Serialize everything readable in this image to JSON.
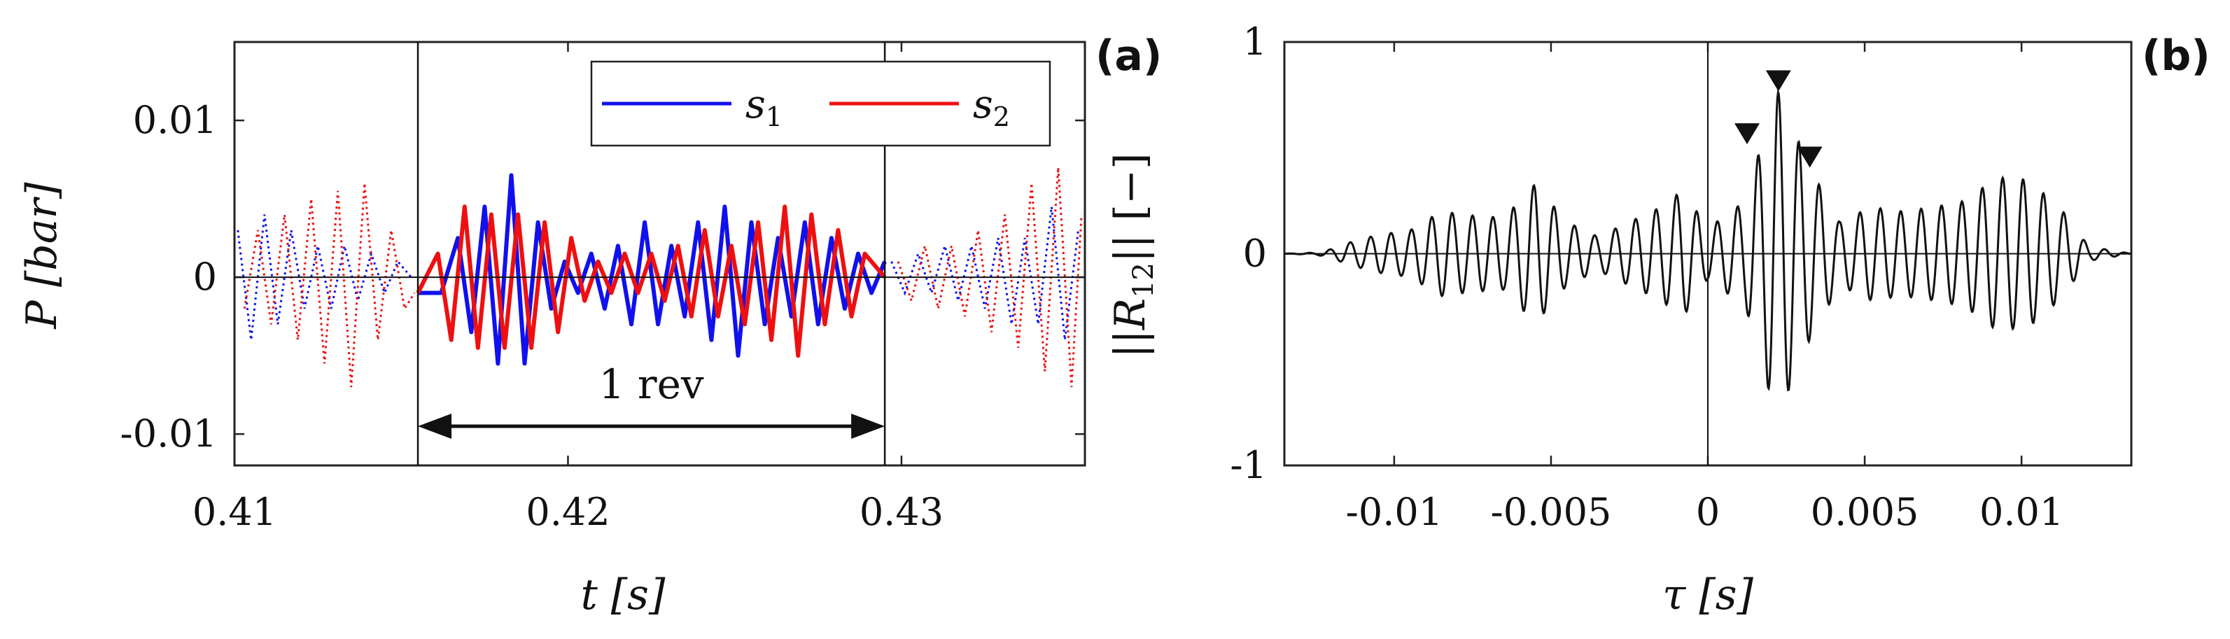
{
  "chart_data": [
    {
      "panel": "(a)",
      "type": "line",
      "xlabel": "t [s]",
      "ylabel": "P [bar]",
      "xlim": [
        0.41,
        0.4355
      ],
      "ylim": [
        -0.012,
        0.015
      ],
      "xticks": [
        0.41,
        0.42,
        0.43
      ],
      "xtick_labels": [
        "0.41",
        "0.42",
        "0.43"
      ],
      "yticks": [
        0.01,
        0,
        -0.01
      ],
      "ytick_labels": [
        "0.01",
        "0",
        "-0.01"
      ],
      "legend": {
        "position": "top-right",
        "entries": [
          "s1",
          "s2"
        ],
        "entry_main": [
          "s",
          "s"
        ],
        "entry_sub": [
          "1",
          "2"
        ]
      },
      "series_colors": [
        "#1010ee",
        "#ee1010"
      ],
      "revolution_window": [
        0.4155,
        0.4295
      ],
      "annotation": "1 rev",
      "series": [
        {
          "name": "s1",
          "color": "#1010ee",
          "x": [
            0.4155,
            0.4162,
            0.4167,
            0.4171,
            0.4175,
            0.4179,
            0.4183,
            0.4187,
            0.4191,
            0.4195,
            0.4199,
            0.4203,
            0.4207,
            0.4211,
            0.4215,
            0.4219,
            0.4223,
            0.4227,
            0.4231,
            0.4235,
            0.4239,
            0.4243,
            0.4247,
            0.4251,
            0.4255,
            0.4259,
            0.4263,
            0.4267,
            0.4271,
            0.4275,
            0.4279,
            0.4283,
            0.4287,
            0.4291,
            0.4295
          ],
          "y": [
            -0.001,
            -0.001,
            0.0025,
            -0.0035,
            0.0045,
            -0.0055,
            0.0065,
            -0.0055,
            0.0035,
            -0.002,
            0.001,
            -0.001,
            0.0015,
            -0.002,
            0.002,
            -0.003,
            0.0035,
            -0.003,
            0.002,
            -0.0025,
            0.0035,
            -0.004,
            0.0045,
            -0.005,
            0.0035,
            -0.003,
            0.0025,
            -0.0025,
            0.0035,
            -0.003,
            0.0025,
            -0.002,
            0.0015,
            -0.001,
            0.001
          ]
        },
        {
          "name": "s2",
          "color": "#ee1010",
          "x": [
            0.4155,
            0.4161,
            0.4165,
            0.4169,
            0.4173,
            0.4177,
            0.4181,
            0.4185,
            0.4189,
            0.4193,
            0.4197,
            0.4201,
            0.4205,
            0.4209,
            0.4213,
            0.4217,
            0.4221,
            0.4225,
            0.4229,
            0.4233,
            0.4237,
            0.4241,
            0.4245,
            0.4249,
            0.4253,
            0.4257,
            0.4261,
            0.4265,
            0.4269,
            0.4273,
            0.4277,
            0.4281,
            0.4285,
            0.4289,
            0.4295
          ],
          "y": [
            -0.001,
            0.0015,
            -0.004,
            0.0045,
            -0.0045,
            0.004,
            -0.0045,
            0.004,
            -0.0045,
            0.0035,
            -0.0035,
            0.0025,
            -0.0015,
            0.001,
            -0.001,
            0.0015,
            -0.001,
            0.0015,
            -0.0015,
            0.002,
            -0.0025,
            0.003,
            -0.0025,
            0.002,
            -0.003,
            0.0035,
            -0.004,
            0.0045,
            -0.005,
            0.004,
            -0.003,
            0.003,
            -0.0025,
            0.0015,
            0.0
          ]
        }
      ],
      "dotted_outside": [
        {
          "name": "s1",
          "color": "#1010ee",
          "x_left": [
            0.4101,
            0.4105,
            0.4109,
            0.4113,
            0.4117,
            0.4121,
            0.4125,
            0.4129,
            0.4133,
            0.4137,
            0.4141,
            0.4145,
            0.4149,
            0.4153
          ],
          "y_left": [
            0.003,
            -0.004,
            0.004,
            -0.003,
            0.003,
            -0.002,
            0.002,
            -0.002,
            0.002,
            -0.0015,
            0.0015,
            -0.001,
            0.001,
            0.0
          ],
          "x_right": [
            0.4297,
            0.4301,
            0.4305,
            0.4309,
            0.4313,
            0.4317,
            0.4321,
            0.4325,
            0.4329,
            0.4333,
            0.4337,
            0.4341,
            0.4345,
            0.4349,
            0.4353
          ],
          "y_right": [
            0.001,
            -0.001,
            0.0015,
            -0.001,
            0.002,
            -0.0015,
            0.002,
            -0.002,
            0.0025,
            -0.003,
            0.0025,
            -0.003,
            0.0045,
            -0.004,
            0.003
          ]
        },
        {
          "name": "s2",
          "color": "#ee1010",
          "x_left": [
            0.4103,
            0.4107,
            0.4111,
            0.4115,
            0.4119,
            0.4123,
            0.4127,
            0.4131,
            0.4135,
            0.4139,
            0.4143,
            0.4147,
            0.4151,
            0.4154
          ],
          "y_left": [
            -0.002,
            0.003,
            -0.003,
            0.004,
            -0.004,
            0.005,
            -0.0055,
            0.0055,
            -0.007,
            0.006,
            -0.004,
            0.003,
            -0.002,
            -0.001
          ],
          "x_right": [
            0.4299,
            0.4303,
            0.4307,
            0.4311,
            0.4315,
            0.4319,
            0.4323,
            0.4327,
            0.4331,
            0.4335,
            0.4339,
            0.4343,
            0.4347,
            0.4351,
            0.4354
          ],
          "y_right": [
            0.001,
            -0.0015,
            0.002,
            -0.002,
            0.002,
            -0.0025,
            0.003,
            -0.0035,
            0.004,
            -0.0045,
            0.006,
            -0.006,
            0.007,
            -0.007,
            0.004
          ]
        }
      ]
    },
    {
      "panel": "(b)",
      "type": "line",
      "xlabel": "τ [s]",
      "ylabel": "||R12|| [−]",
      "ylabel_parts": {
        "open": "||",
        "main": "R",
        "sub": "12",
        "close": "|| [−]"
      },
      "xlim": [
        -0.0135,
        0.0135
      ],
      "ylim": [
        -1,
        1
      ],
      "xticks": [
        -0.01,
        -0.005,
        0,
        0.005,
        0.01
      ],
      "xtick_labels": [
        "-0.01",
        "-0.005",
        "0",
        "0.005",
        "0.01"
      ],
      "yticks": [
        1,
        0,
        -1
      ],
      "ytick_labels": [
        "1",
        "0",
        "-1"
      ],
      "series_colors": [
        "#111111"
      ],
      "series": [
        {
          "name": "",
          "envelope_peaks": [
            [
              -0.0125,
              0.01
            ],
            [
              -0.0115,
              0.05
            ],
            [
              -0.0105,
              0.09
            ],
            [
              -0.0095,
              0.11
            ],
            [
              -0.0085,
              0.2
            ],
            [
              -0.0075,
              0.18
            ],
            [
              -0.0065,
              0.17
            ],
            [
              -0.0055,
              0.33
            ],
            [
              -0.0045,
              0.15
            ],
            [
              -0.0035,
              0.08
            ],
            [
              -0.0025,
              0.15
            ],
            [
              -0.0015,
              0.22
            ],
            [
              -0.0008,
              0.3
            ],
            [
              0.0,
              0.12
            ],
            [
              0.0012,
              0.25
            ],
            [
              0.0022,
              0.78
            ],
            [
              0.0032,
              0.42
            ],
            [
              0.0042,
              0.15
            ],
            [
              0.0052,
              0.22
            ],
            [
              0.0062,
              0.2
            ],
            [
              0.0072,
              0.22
            ],
            [
              0.0082,
              0.25
            ],
            [
              0.0092,
              0.36
            ],
            [
              0.0102,
              0.35
            ],
            [
              0.0112,
              0.22
            ],
            [
              0.0122,
              0.05
            ]
          ],
          "oscillation_period": 0.00065
        }
      ],
      "peak_markers": [
        {
          "x": 0.00125,
          "y": 0.53
        },
        {
          "x": 0.00225,
          "y": 0.78
        },
        {
          "x": 0.00325,
          "y": 0.42
        }
      ]
    }
  ]
}
